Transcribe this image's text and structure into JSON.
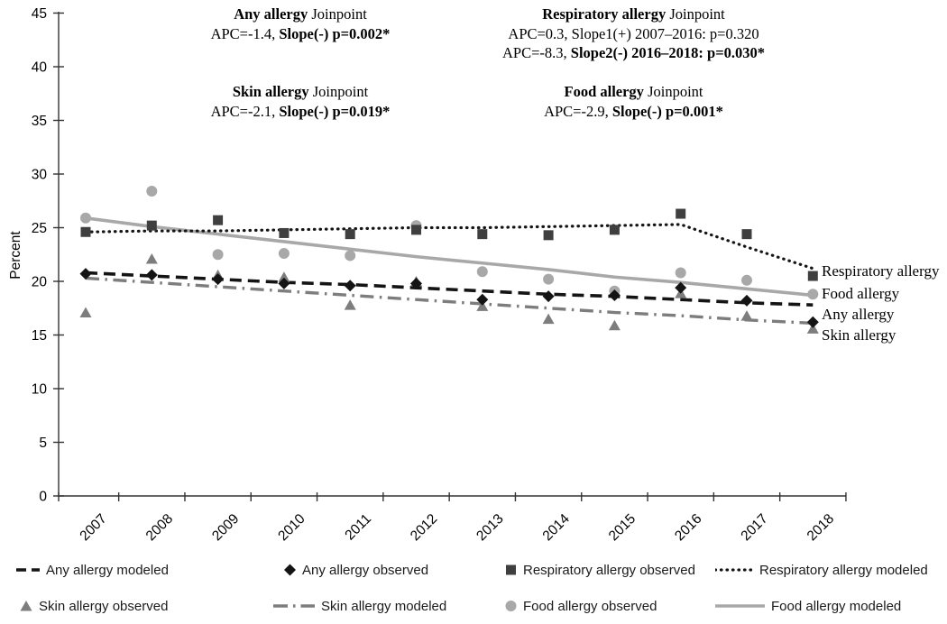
{
  "y_axis": {
    "label": "Percent",
    "ticks": [
      "0",
      "5",
      "10",
      "15",
      "20",
      "25",
      "30",
      "35",
      "40",
      "45"
    ],
    "min": 0,
    "max": 45
  },
  "x_axis": {
    "years": [
      "2007",
      "2008",
      "2009",
      "2010",
      "2011",
      "2012",
      "2013",
      "2014",
      "2015",
      "2016",
      "2017",
      "2018"
    ]
  },
  "annotations": {
    "any": {
      "title_bold": "Any allergy",
      "title_rest": " Joinpoint",
      "l1_pre": "APC=-1.4, ",
      "l1_bold": "Slope(-) p=0.002*"
    },
    "resp": {
      "title_bold": "Respiratory allergy",
      "title_rest": " Joinpoint",
      "l1_pre": "APC=0.3, Slope1(+) 2007–2016: p=0.320",
      "l1_bold": "",
      "l2_pre": "APC=-8.3, ",
      "l2_bold": "Slope2(-) 2016–2018: p=0.030*"
    },
    "skin": {
      "title_bold": "Skin allergy",
      "title_rest": " Joinpoint",
      "l1_pre": "APC=-2.1, ",
      "l1_bold": "Slope(-) p=0.019*"
    },
    "food": {
      "title_bold": "Food allergy",
      "title_rest": " Joinpoint",
      "l1_pre": "APC=-2.9, ",
      "l1_bold": "Slope(-) p=0.001*"
    }
  },
  "right_labels": [
    "Respiratory allergy",
    "Food allergy",
    "Any allergy",
    "Skin allergy"
  ],
  "legend": {
    "rows": [
      [
        {
          "label": "Any allergy modeled",
          "swatch": "dashed",
          "color": "black"
        },
        {
          "label": "Any allergy observed",
          "swatch": "diamond",
          "color": "black"
        },
        {
          "label": "Respiratory allergy observed",
          "swatch": "square",
          "color": "dark_gray"
        },
        {
          "label": "Respiratory allergy modeled",
          "swatch": "dotted",
          "color": "black"
        }
      ],
      [
        {
          "label": "Skin allergy observed",
          "swatch": "triangle",
          "color": "mid_gray"
        },
        {
          "label": "Skin allergy modeled",
          "swatch": "dashdot",
          "color": "mid_gray"
        },
        {
          "label": "Food allergy observed",
          "swatch": "circle",
          "color": "light_gray"
        },
        {
          "label": "Food allergy modeled",
          "swatch": "solid",
          "color": "light_gray"
        }
      ]
    ]
  },
  "colors": {
    "black": "#141414",
    "dark_gray": "#3f3f3f",
    "mid_gray": "#7d7d7d",
    "light_gray": "#a8a8a8",
    "axis": "#333333"
  },
  "chart_data": {
    "type": "line",
    "title": "",
    "xlabel": "",
    "ylabel": "Percent",
    "ylim": [
      0,
      45
    ],
    "x": [
      2007,
      2008,
      2009,
      2010,
      2011,
      2012,
      2013,
      2014,
      2015,
      2016,
      2017,
      2018
    ],
    "series": [
      {
        "name": "Food allergy modeled",
        "line": "solid",
        "color": "light_gray",
        "values": [
          25.9,
          25.1,
          24.4,
          23.7,
          23.0,
          22.3,
          21.7,
          21.1,
          20.4,
          19.9,
          19.3,
          18.7
        ]
      },
      {
        "name": "Skin allergy modeled",
        "line": "dashdot",
        "color": "mid_gray",
        "values": [
          20.3,
          19.9,
          19.5,
          19.1,
          18.7,
          18.3,
          17.9,
          17.5,
          17.1,
          16.8,
          16.4,
          16.1
        ]
      },
      {
        "name": "Respiratory allergy modeled",
        "line": "dotted",
        "color": "black",
        "values": [
          24.6,
          24.7,
          24.7,
          24.8,
          24.9,
          25.0,
          25.0,
          25.1,
          25.2,
          25.3,
          23.2,
          21.2
        ]
      },
      {
        "name": "Any allergy modeled",
        "line": "dashed",
        "color": "black",
        "values": [
          20.8,
          20.5,
          20.2,
          19.9,
          19.7,
          19.4,
          19.1,
          18.8,
          18.6,
          18.3,
          18.0,
          17.8
        ]
      },
      {
        "name": "Food allergy observed",
        "marker": "circle",
        "color": "light_gray",
        "values": [
          25.9,
          28.4,
          22.5,
          22.6,
          22.4,
          25.2,
          20.9,
          20.2,
          19.1,
          20.8,
          20.1,
          18.8
        ]
      },
      {
        "name": "Skin allergy observed",
        "marker": "triangle",
        "color": "mid_gray",
        "values": [
          17.1,
          22.1,
          20.6,
          20.4,
          17.8,
          20.0,
          17.7,
          16.5,
          15.9,
          18.9,
          16.8,
          15.6
        ]
      },
      {
        "name": "Respiratory allergy observed",
        "marker": "square",
        "color": "dark_gray",
        "values": [
          24.6,
          25.2,
          25.7,
          24.5,
          24.4,
          24.8,
          24.4,
          24.3,
          24.8,
          26.3,
          24.4,
          20.5
        ]
      },
      {
        "name": "Any allergy observed",
        "marker": "diamond",
        "color": "black",
        "values": [
          20.7,
          20.6,
          20.2,
          19.8,
          19.6,
          19.8,
          18.3,
          18.6,
          18.7,
          19.4,
          18.2,
          16.2
        ]
      }
    ]
  }
}
